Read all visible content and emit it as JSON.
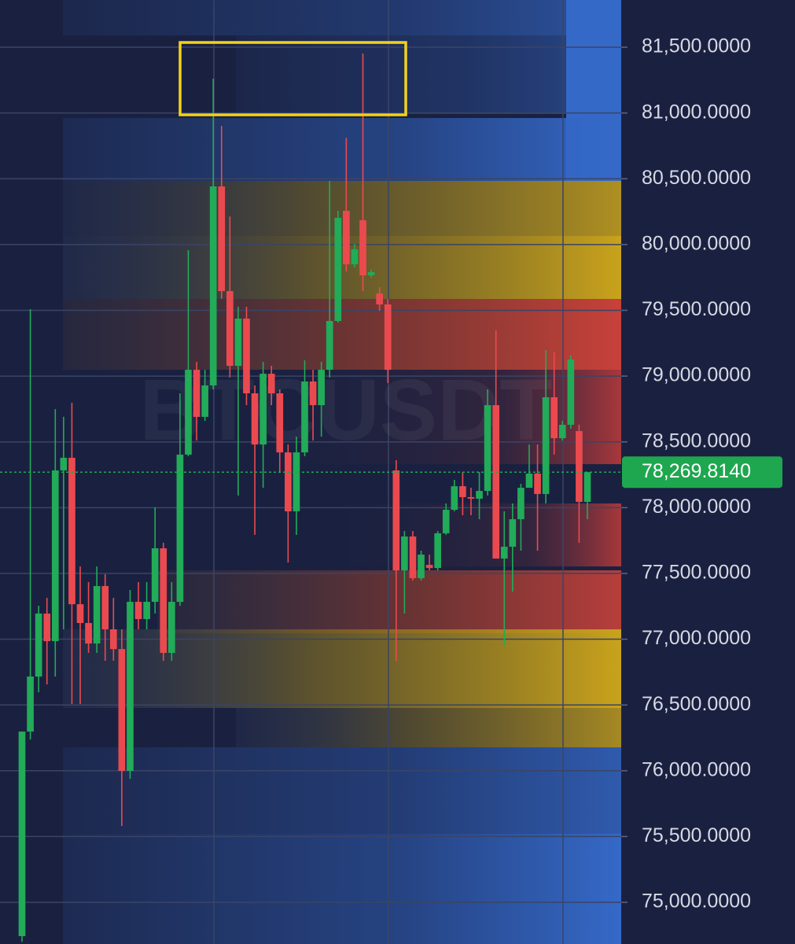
{
  "chart_data": {
    "type": "candlestick",
    "watermark": "BTCUSDT",
    "categories": [
      null,
      null,
      null,
      null,
      null,
      null,
      null,
      null,
      null,
      null,
      null,
      null,
      null,
      null,
      null,
      null,
      null,
      null,
      null,
      null,
      null,
      null,
      null,
      null,
      null,
      null,
      null,
      null,
      null,
      null,
      null,
      null,
      null,
      null,
      null,
      null,
      null,
      null,
      null,
      null,
      null,
      null,
      null,
      null,
      null,
      null,
      null,
      null,
      null,
      null,
      null,
      null,
      null,
      null,
      null,
      null,
      null,
      null,
      null,
      null,
      null,
      null,
      null,
      null,
      null,
      null,
      null,
      null,
      null
    ],
    "open": [
      74743,
      76298,
      76716,
      77195,
      76985,
      78283,
      78379,
      77266,
      77123,
      76967,
      77404,
      77075,
      76925,
      75999,
      77284,
      77153,
      77284,
      77691,
      76896,
      77284,
      78403,
      79048,
      78690,
      78929,
      80442,
      79646,
      79078,
      79437,
      78869,
      78480,
      79018,
      78869,
      78420,
      77972,
      78420,
      78959,
      78779,
      79048,
      79419,
      80256,
      79850,
      80185,
      79766,
      79628,
      79545,
      78283,
      77523,
      77781,
      77464,
      77565,
      77541,
      77805,
      77984,
      78163,
      78080,
      78068,
      78127,
      78779,
      77613,
      77703,
      77912,
      78151,
      78259,
      78104,
      78839,
      78528,
      78630,
      78582,
      78044
    ],
    "high": [
      76298,
      79509,
      77254,
      77314,
      78749,
      78690,
      78797,
      77553,
      77434,
      77553,
      77494,
      77314,
      77075,
      77374,
      77434,
      77434,
      78002,
      77733,
      77434,
      78869,
      79957,
      79108,
      79048,
      81261,
      80902,
      80214,
      79527,
      79527,
      78929,
      79108,
      79078,
      78899,
      78480,
      78540,
      79120,
      79048,
      79108,
      80484,
      80256,
      80812,
      80005,
      81452,
      79808,
      79676,
      79587,
      78361,
      77822,
      77822,
      77673,
      77643,
      77822,
      78032,
      78211,
      78271,
      78151,
      78271,
      78899,
      79347,
      77972,
      78032,
      78181,
      78480,
      78480,
      79198,
      79180,
      78660,
      79156,
      78630,
      78271
    ],
    "low": [
      74700,
      76238,
      76597,
      76656,
      76716,
      77075,
      76507,
      76507,
      76896,
      76896,
      76836,
      76836,
      75580,
      75939,
      77075,
      77075,
      77195,
      76836,
      76836,
      77254,
      78391,
      78510,
      78660,
      78899,
      79587,
      78989,
      78092,
      78779,
      77793,
      78151,
      78779,
      78271,
      77583,
      77793,
      78391,
      78510,
      78540,
      78989,
      79407,
      79796,
      79826,
      79646,
      79748,
      79497,
      78947,
      76836,
      77195,
      77446,
      77446,
      77523,
      77523,
      77793,
      77972,
      77942,
      77942,
      77912,
      78092,
      77613,
      76955,
      77362,
      77673,
      78151,
      77673,
      78032,
      78403,
      78510,
      78600,
      77733,
      77912
    ],
    "close": [
      76298,
      76716,
      77195,
      76985,
      78283,
      78379,
      77266,
      77123,
      76967,
      77404,
      77075,
      76925,
      75999,
      77284,
      77153,
      77284,
      77691,
      76896,
      77284,
      78403,
      79048,
      78690,
      78929,
      80442,
      79646,
      79078,
      79437,
      78869,
      78480,
      79018,
      78869,
      78420,
      77972,
      78420,
      78959,
      78779,
      79048,
      79419,
      80203,
      79850,
      79963,
      79766,
      79790,
      79545,
      79048,
      77523,
      77781,
      77464,
      77643,
      77541,
      77805,
      77984,
      78163,
      78080,
      78068,
      78127,
      78779,
      77613,
      77703,
      77912,
      78151,
      78259,
      78104,
      78839,
      78528,
      78630,
      79126,
      78044,
      78269.814
    ],
    "up_color": "#22ab58",
    "down_color": "#ea4a4f",
    "current_price": {
      "value": 78269.814,
      "label": "78,269.8140"
    },
    "current_price_color": "#1fa74f",
    "ylim": [
      74683,
      81859
    ],
    "yticks": [
      {
        "value": 75000,
        "label": "75,000.0000"
      },
      {
        "value": 75500,
        "label": "75,500.0000"
      },
      {
        "value": 76000,
        "label": "76,000.0000"
      },
      {
        "value": 76500,
        "label": "76,500.0000"
      },
      {
        "value": 77000,
        "label": "77,000.0000"
      },
      {
        "value": 77500,
        "label": "77,500.0000"
      },
      {
        "value": 78000,
        "label": "78,000.0000"
      },
      {
        "value": 78500,
        "label": "78,500.0000"
      },
      {
        "value": 79000,
        "label": "79,000.0000"
      },
      {
        "value": 79500,
        "label": "79,500.0000"
      },
      {
        "value": 80000,
        "label": "80,000.0000"
      },
      {
        "value": 80500,
        "label": "80,500.0000"
      },
      {
        "value": 81000,
        "label": "81,000.0000"
      },
      {
        "value": 81500,
        "label": "81,500.0000"
      }
    ],
    "grid": true
  }
}
